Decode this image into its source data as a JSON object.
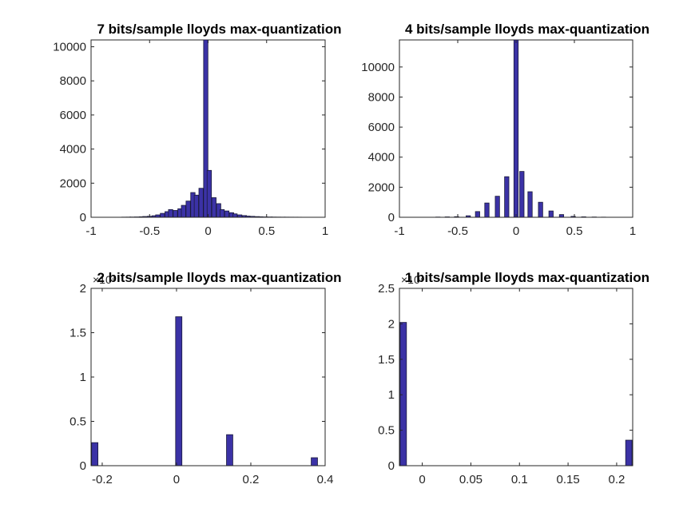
{
  "figure": {
    "background": "#ffffff",
    "bar_fill": "#3b32a6",
    "bar_edge": "#1a1a3a"
  },
  "chart_data": [
    {
      "type": "bar",
      "title": "7 bits/sample lloyds max-quantization",
      "xlim": [
        -1,
        1
      ],
      "ylim": [
        0,
        10400
      ],
      "xticks": [
        -1,
        -0.5,
        0,
        0.5,
        1
      ],
      "xtick_labels": [
        "-1",
        "-0.5",
        "0",
        "0.5",
        "1"
      ],
      "yticks": [
        0,
        2000,
        4000,
        6000,
        8000,
        10000
      ],
      "ytick_labels": [
        "0",
        "2000",
        "4000",
        "6000",
        "8000",
        "10000"
      ],
      "y_exponent": "",
      "bar_width": 0.037,
      "x": [
        -0.72,
        -0.68,
        -0.65,
        -0.61,
        -0.57,
        -0.54,
        -0.5,
        -0.46,
        -0.43,
        -0.39,
        -0.35,
        -0.32,
        -0.28,
        -0.24,
        -0.21,
        -0.17,
        -0.13,
        -0.1,
        -0.06,
        -0.02,
        0.01,
        0.05,
        0.09,
        0.12,
        0.16,
        0.2,
        0.23,
        0.27,
        0.31,
        0.34,
        0.38,
        0.42,
        0.45,
        0.49,
        0.53,
        0.56,
        0.6,
        0.64,
        0.67,
        0.71,
        0.75,
        0.78
      ],
      "values": [
        10,
        12,
        15,
        20,
        30,
        45,
        60,
        90,
        140,
        230,
        330,
        450,
        400,
        500,
        700,
        950,
        1450,
        1300,
        1700,
        10400,
        2750,
        1150,
        800,
        450,
        370,
        270,
        200,
        140,
        100,
        70,
        55,
        40,
        30,
        22,
        18,
        14,
        12,
        10,
        9,
        8,
        7,
        6
      ]
    },
    {
      "type": "bar",
      "title": "4 bits/sample lloyds max-quantization",
      "xlim": [
        -1,
        1
      ],
      "ylim": [
        0,
        11800
      ],
      "xticks": [
        -1,
        -0.5,
        0,
        0.5,
        1
      ],
      "xtick_labels": [
        "-1",
        "-0.5",
        "0",
        "0.5",
        "1"
      ],
      "yticks": [
        0,
        2000,
        4000,
        6000,
        8000,
        10000
      ],
      "ytick_labels": [
        "0",
        "2000",
        "4000",
        "6000",
        "8000",
        "10000"
      ],
      "y_exponent": "",
      "bar_width": 0.037,
      "x": [
        -0.67,
        -0.59,
        -0.51,
        -0.41,
        -0.33,
        -0.25,
        -0.16,
        -0.08,
        0.0,
        0.05,
        0.12,
        0.21,
        0.3,
        0.39,
        0.49,
        0.58,
        0.67,
        0.75
      ],
      "values": [
        15,
        25,
        40,
        100,
        380,
        950,
        1400,
        2700,
        11800,
        3050,
        1700,
        1000,
        420,
        180,
        60,
        30,
        18,
        10
      ]
    },
    {
      "type": "bar",
      "title": "2 bits/sample lloyds max-quantization",
      "xlim": [
        -0.23,
        0.4
      ],
      "ylim": [
        0,
        2
      ],
      "xticks": [
        -0.2,
        0,
        0.2,
        0.4
      ],
      "xtick_labels": [
        "-0.2",
        "0",
        "0.2",
        "0.4"
      ],
      "yticks": [
        0,
        0.5,
        1,
        1.5,
        2
      ],
      "ytick_labels": [
        "0",
        "0.5",
        "1",
        "1.5",
        "2"
      ],
      "y_exponent": "×10⁴",
      "bar_width": 0.017,
      "x": [
        -0.22,
        0.006,
        0.143,
        0.371
      ],
      "values": [
        0.26,
        1.68,
        0.35,
        0.09
      ]
    },
    {
      "type": "bar",
      "title": "1 bits/sample lloyds max-quantization",
      "xlim": [
        -0.0235,
        0.2165
      ],
      "ylim": [
        0,
        2.5
      ],
      "xticks": [
        0,
        0.05,
        0.1,
        0.15,
        0.2
      ],
      "xtick_labels": [
        "0",
        "0.05",
        "0.1",
        "0.15",
        "0.2"
      ],
      "yticks": [
        0,
        0.5,
        1,
        1.5,
        2,
        2.5
      ],
      "ytick_labels": [
        "0",
        "0.5",
        "1",
        "1.5",
        "2",
        "2.5"
      ],
      "y_exponent": "×10⁴",
      "bar_width": 0.0065,
      "x": [
        -0.0195,
        0.2125
      ],
      "values": [
        2.02,
        0.36
      ]
    }
  ]
}
